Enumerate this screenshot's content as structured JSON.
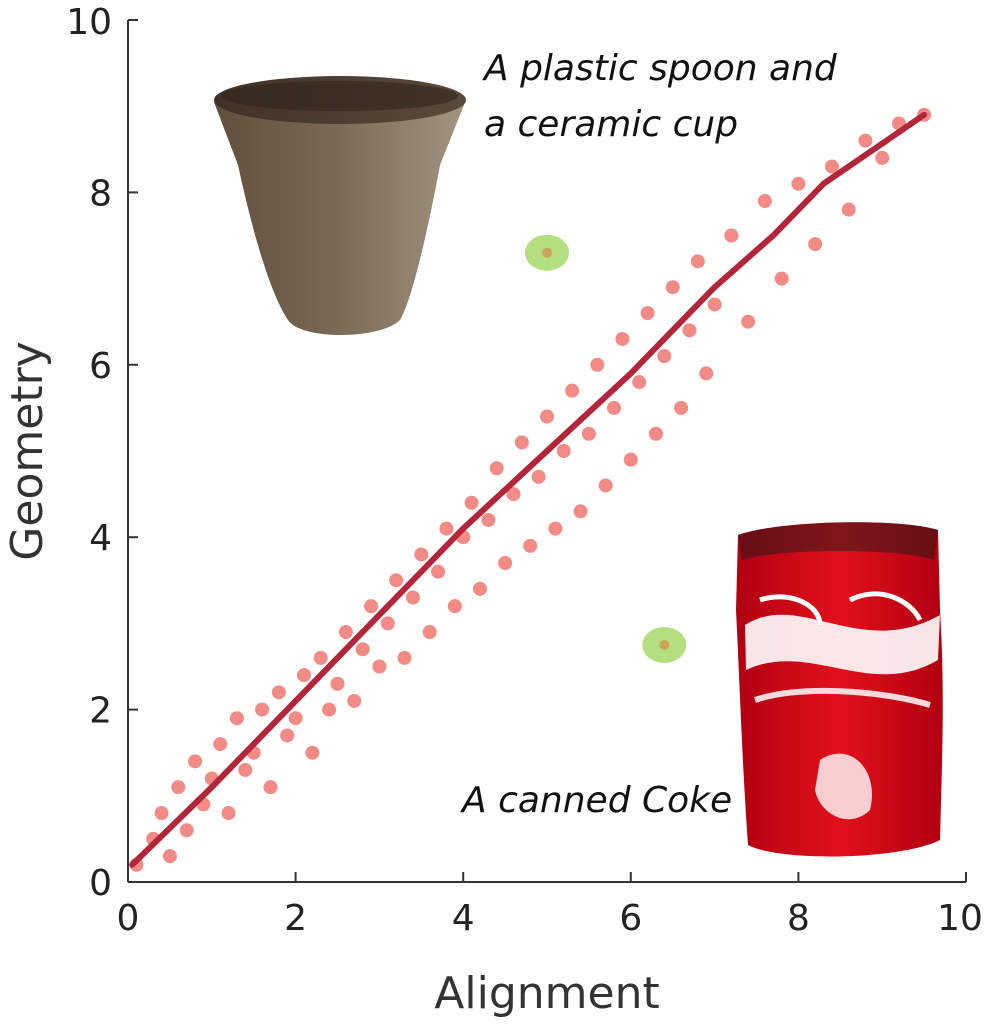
{
  "chart_data": {
    "type": "scatter",
    "xlabel": "Alignment",
    "ylabel": "Geometry",
    "xlim": [
      0,
      10
    ],
    "ylim": [
      0,
      10
    ],
    "xticks": [
      "0",
      "2",
      "4",
      "6",
      "8",
      "10"
    ],
    "yticks": [
      "0",
      "2",
      "4",
      "6",
      "8",
      "10"
    ],
    "grid": false,
    "colors": {
      "points": "#f28b86",
      "fit_line": "#b3263a",
      "highlight_fill": "#a6d96a",
      "highlight_dot": "#c9a55a",
      "axis": "#333333"
    },
    "series": [
      {
        "points": [
          [
            0.1,
            0.2
          ],
          [
            0.3,
            0.5
          ],
          [
            0.4,
            0.8
          ],
          [
            0.5,
            0.3
          ],
          [
            0.6,
            1.1
          ],
          [
            0.7,
            0.6
          ],
          [
            0.8,
            1.4
          ],
          [
            0.9,
            0.9
          ],
          [
            1.0,
            1.2
          ],
          [
            1.1,
            1.6
          ],
          [
            1.2,
            0.8
          ],
          [
            1.3,
            1.9
          ],
          [
            1.4,
            1.3
          ],
          [
            1.5,
            1.5
          ],
          [
            1.6,
            2.0
          ],
          [
            1.7,
            1.1
          ],
          [
            1.8,
            2.2
          ],
          [
            1.9,
            1.7
          ],
          [
            2.0,
            1.9
          ],
          [
            2.1,
            2.4
          ],
          [
            2.2,
            1.5
          ],
          [
            2.3,
            2.6
          ],
          [
            2.4,
            2.0
          ],
          [
            2.5,
            2.3
          ],
          [
            2.6,
            2.9
          ],
          [
            2.7,
            2.1
          ],
          [
            2.8,
            2.7
          ],
          [
            2.9,
            3.2
          ],
          [
            3.0,
            2.5
          ],
          [
            3.1,
            3.0
          ],
          [
            3.2,
            3.5
          ],
          [
            3.3,
            2.6
          ],
          [
            3.4,
            3.3
          ],
          [
            3.5,
            3.8
          ],
          [
            3.6,
            2.9
          ],
          [
            3.7,
            3.6
          ],
          [
            3.8,
            4.1
          ],
          [
            3.9,
            3.2
          ],
          [
            4.0,
            4.0
          ],
          [
            4.1,
            4.4
          ],
          [
            4.2,
            3.4
          ],
          [
            4.3,
            4.2
          ],
          [
            4.4,
            4.8
          ],
          [
            4.5,
            3.7
          ],
          [
            4.6,
            4.5
          ],
          [
            4.7,
            5.1
          ],
          [
            4.8,
            3.9
          ],
          [
            4.9,
            4.7
          ],
          [
            5.0,
            5.4
          ],
          [
            5.1,
            4.1
          ],
          [
            5.2,
            5.0
          ],
          [
            5.3,
            5.7
          ],
          [
            5.4,
            4.3
          ],
          [
            5.5,
            5.2
          ],
          [
            5.6,
            6.0
          ],
          [
            5.7,
            4.6
          ],
          [
            5.8,
            5.5
          ],
          [
            5.9,
            6.3
          ],
          [
            6.0,
            4.9
          ],
          [
            6.1,
            5.8
          ],
          [
            6.2,
            6.6
          ],
          [
            6.3,
            5.2
          ],
          [
            6.4,
            6.1
          ],
          [
            6.5,
            6.9
          ],
          [
            6.6,
            5.5
          ],
          [
            6.7,
            6.4
          ],
          [
            6.8,
            7.2
          ],
          [
            6.9,
            5.9
          ],
          [
            7.0,
            6.7
          ],
          [
            7.2,
            7.5
          ],
          [
            7.4,
            6.5
          ],
          [
            7.6,
            7.9
          ],
          [
            7.8,
            7.0
          ],
          [
            8.0,
            8.1
          ],
          [
            8.2,
            7.4
          ],
          [
            8.4,
            8.3
          ],
          [
            8.6,
            7.8
          ],
          [
            8.8,
            8.6
          ],
          [
            9.0,
            8.4
          ],
          [
            9.2,
            8.8
          ],
          [
            9.5,
            8.9
          ]
        ]
      }
    ],
    "fit_line": [
      [
        0.05,
        0.2
      ],
      [
        1,
        1.1
      ],
      [
        2,
        2.1
      ],
      [
        3,
        3.1
      ],
      [
        4,
        4.1
      ],
      [
        5,
        5.0
      ],
      [
        6,
        5.9
      ],
      [
        7,
        6.9
      ],
      [
        7.7,
        7.5
      ],
      [
        8.3,
        8.1
      ],
      [
        9.5,
        8.9
      ]
    ],
    "highlights": [
      [
        5.0,
        7.3
      ],
      [
        6.4,
        2.75
      ]
    ],
    "annotations": [
      {
        "lines": [
          "A plastic spoon and",
          "a ceramic cup"
        ]
      },
      {
        "lines": [
          "A canned Coke"
        ]
      }
    ]
  }
}
